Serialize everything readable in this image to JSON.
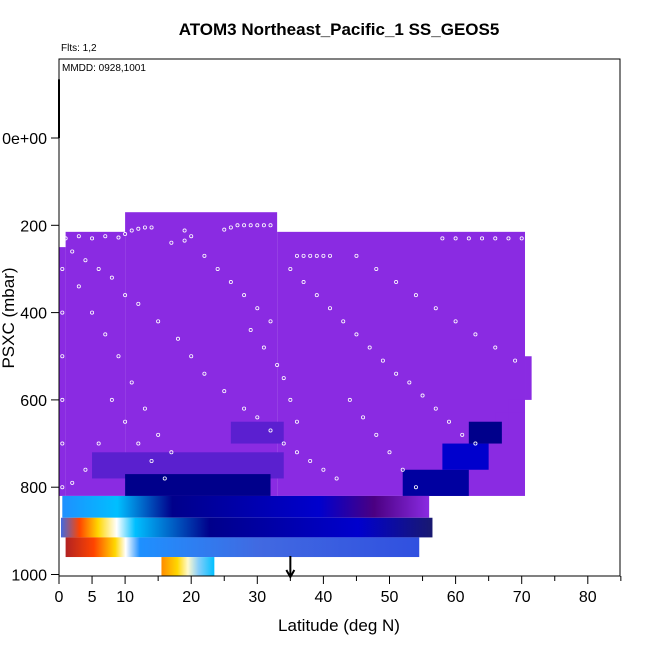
{
  "chart_data": {
    "type": "heatmap",
    "title": "ATOM3 Northeast_Pacific_1 SS_GEOS5",
    "subtitle": "Flts: 1,2",
    "annotation": "MMDD: 0928,1001",
    "xlabel": "Latitude (deg N)",
    "ylabel": "PSXC (mbar)",
    "xlim": [
      0,
      85
    ],
    "ylim": [
      1000,
      -150
    ],
    "y_inverted": true,
    "grid": false,
    "x_ticks": [
      0,
      5,
      10,
      20,
      30,
      40,
      50,
      60,
      70,
      80
    ],
    "x_minor_ticks": [
      15,
      25,
      35,
      45,
      55,
      65,
      75,
      85
    ],
    "y_ticks": [
      0,
      200,
      400,
      600,
      800,
      1000
    ],
    "y_tick_labels": [
      "0e+00",
      "200",
      "400",
      "600",
      "800",
      "1000"
    ],
    "colors": {
      "background_field": "#8a2be2",
      "low_concentration": "#8a2be2",
      "mid_low": "#00008b",
      "mid": "#1e90ff",
      "mid_high": "#fff8dc",
      "high": "#ff8c00",
      "highest": "#b22222"
    },
    "upper_field": [
      {
        "lat_from": 0,
        "lat_to": 1,
        "p_top": 250,
        "p_bottom": 820
      },
      {
        "lat_from": 1,
        "lat_to": 10,
        "p_top": 215,
        "p_bottom": 820
      },
      {
        "lat_from": 10,
        "lat_to": 33,
        "p_top": 170,
        "p_bottom": 820
      },
      {
        "lat_from": 33,
        "lat_to": 70.5,
        "p_top": 215,
        "p_bottom": 820
      },
      {
        "lat_from": 70.5,
        "lat_to": 71.5,
        "p_top": 500,
        "p_bottom": 600
      },
      {
        "lat_from": 68,
        "lat_to": 70.5,
        "p_top": 600,
        "p_bottom": 630
      },
      {
        "lat_from": 66,
        "lat_to": 68,
        "p_top": 630,
        "p_bottom": 680
      }
    ],
    "colored_bands": [
      {
        "lat_from": 0.5,
        "lat_to": 56,
        "p_top": 820,
        "p_bottom": 870,
        "gradient": [
          [
            0,
            "#1e90ff"
          ],
          [
            0.15,
            "#00bfff"
          ],
          [
            0.3,
            "#00008b"
          ],
          [
            0.7,
            "#0000cd"
          ],
          [
            0.85,
            "#4b0082"
          ],
          [
            1,
            "#8a2be2"
          ]
        ]
      },
      {
        "lat_from": 0.3,
        "lat_to": 56.5,
        "p_top": 870,
        "p_bottom": 915,
        "gradient": [
          [
            0,
            "#4169e1"
          ],
          [
            0.05,
            "#ff4500"
          ],
          [
            0.1,
            "#ffd700"
          ],
          [
            0.15,
            "#ffffff"
          ],
          [
            0.2,
            "#00bfff"
          ],
          [
            0.4,
            "#00008b"
          ],
          [
            0.8,
            "#0000cd"
          ],
          [
            1,
            "#191970"
          ]
        ]
      },
      {
        "lat_from": 1,
        "lat_to": 54.5,
        "p_top": 915,
        "p_bottom": 960,
        "gradient": [
          [
            0,
            "#b22222"
          ],
          [
            0.08,
            "#ff4500"
          ],
          [
            0.14,
            "#ffd700"
          ],
          [
            0.17,
            "#ffffff"
          ],
          [
            0.21,
            "#1e90ff"
          ],
          [
            0.55,
            "#4169e1"
          ],
          [
            1,
            "#3050e0"
          ]
        ]
      },
      {
        "lat_from": 15.5,
        "lat_to": 23.5,
        "p_top": 960,
        "p_bottom": 1005,
        "gradient": [
          [
            0,
            "#ff8c00"
          ],
          [
            0.3,
            "#ffd700"
          ],
          [
            0.5,
            "#fffacd"
          ],
          [
            0.7,
            "#87cefa"
          ],
          [
            1,
            "#00bfff"
          ]
        ]
      }
    ],
    "dark_blue_mid": [
      {
        "lat_from": 26,
        "lat_to": 34,
        "p_top": 650,
        "p_bottom": 700,
        "color": "#5b1fd0"
      },
      {
        "lat_from": 5,
        "lat_to": 34,
        "p_top": 720,
        "p_bottom": 780,
        "color": "#5a20cf"
      },
      {
        "lat_from": 10,
        "lat_to": 32,
        "p_top": 770,
        "p_bottom": 820,
        "color": "#00008b"
      },
      {
        "lat_from": 52,
        "lat_to": 62,
        "p_top": 760,
        "p_bottom": 820,
        "color": "#0000a0"
      },
      {
        "lat_from": 58,
        "lat_to": 65,
        "p_top": 700,
        "p_bottom": 760,
        "color": "#0000cd"
      },
      {
        "lat_from": 62,
        "lat_to": 67,
        "p_top": 650,
        "p_bottom": 700,
        "color": "#00008b"
      }
    ],
    "flight_track_points": [
      [
        1,
        230
      ],
      [
        3,
        225
      ],
      [
        5,
        230
      ],
      [
        7,
        225
      ],
      [
        9,
        228
      ],
      [
        10,
        220
      ],
      [
        11,
        212
      ],
      [
        12,
        208
      ],
      [
        13,
        205
      ],
      [
        14,
        205
      ],
      [
        17,
        240
      ],
      [
        19,
        235
      ],
      [
        19,
        212
      ],
      [
        20,
        225
      ],
      [
        25,
        210
      ],
      [
        26,
        205
      ],
      [
        27,
        200
      ],
      [
        28,
        200
      ],
      [
        29,
        200
      ],
      [
        30,
        200
      ],
      [
        31,
        200
      ],
      [
        32,
        200
      ],
      [
        36,
        270
      ],
      [
        37,
        270
      ],
      [
        38,
        270
      ],
      [
        39,
        270
      ],
      [
        40,
        270
      ],
      [
        41,
        270
      ],
      [
        58,
        230
      ],
      [
        60,
        230
      ],
      [
        62,
        230
      ],
      [
        64,
        230
      ],
      [
        66,
        230
      ],
      [
        68,
        230
      ],
      [
        70,
        230
      ],
      [
        2,
        260
      ],
      [
        4,
        280
      ],
      [
        6,
        300
      ],
      [
        8,
        320
      ],
      [
        10,
        360
      ],
      [
        12,
        380
      ],
      [
        15,
        420
      ],
      [
        18,
        460
      ],
      [
        20,
        500
      ],
      [
        22,
        540
      ],
      [
        25,
        580
      ],
      [
        28,
        620
      ],
      [
        30,
        640
      ],
      [
        32,
        670
      ],
      [
        34,
        700
      ],
      [
        36,
        720
      ],
      [
        38,
        740
      ],
      [
        40,
        760
      ],
      [
        42,
        780
      ],
      [
        3,
        340
      ],
      [
        5,
        400
      ],
      [
        7,
        450
      ],
      [
        9,
        500
      ],
      [
        11,
        560
      ],
      [
        13,
        620
      ],
      [
        15,
        680
      ],
      [
        17,
        720
      ],
      [
        35,
        300
      ],
      [
        37,
        330
      ],
      [
        39,
        360
      ],
      [
        41,
        390
      ],
      [
        43,
        420
      ],
      [
        45,
        450
      ],
      [
        47,
        480
      ],
      [
        49,
        510
      ],
      [
        51,
        540
      ],
      [
        53,
        560
      ],
      [
        55,
        590
      ],
      [
        57,
        620
      ],
      [
        59,
        650
      ],
      [
        61,
        680
      ],
      [
        63,
        700
      ],
      [
        45,
        270
      ],
      [
        48,
        300
      ],
      [
        51,
        330
      ],
      [
        54,
        360
      ],
      [
        57,
        390
      ],
      [
        60,
        420
      ],
      [
        63,
        450
      ],
      [
        66,
        480
      ],
      [
        69,
        510
      ],
      [
        22,
        270
      ],
      [
        24,
        300
      ],
      [
        26,
        330
      ],
      [
        28,
        360
      ],
      [
        30,
        390
      ],
      [
        32,
        420
      ],
      [
        34,
        550
      ],
      [
        35,
        600
      ],
      [
        36,
        650
      ],
      [
        33,
        520
      ],
      [
        31,
        480
      ],
      [
        29,
        440
      ],
      [
        8,
        600
      ],
      [
        10,
        650
      ],
      [
        12,
        700
      ],
      [
        14,
        740
      ],
      [
        16,
        780
      ],
      [
        6,
        700
      ],
      [
        4,
        760
      ],
      [
        2,
        790
      ],
      [
        44,
        600
      ],
      [
        46,
        640
      ],
      [
        48,
        680
      ],
      [
        50,
        720
      ],
      [
        52,
        760
      ],
      [
        54,
        800
      ],
      [
        0.5,
        300
      ],
      [
        0.5,
        400
      ],
      [
        0.5,
        500
      ],
      [
        0.5,
        600
      ],
      [
        0.5,
        700
      ],
      [
        0.5,
        800
      ]
    ],
    "arrow_marker": {
      "lat": 35,
      "p": 1000
    },
    "vertical_marker": {
      "lat": 0,
      "p_from": -100,
      "p_to": 0
    }
  }
}
